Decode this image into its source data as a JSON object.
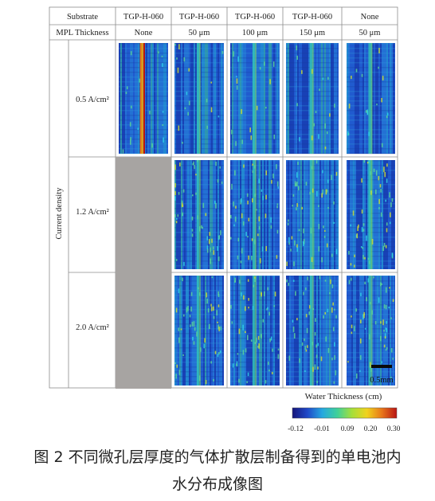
{
  "table": {
    "header_row1": [
      "Substrate",
      "TGP-H-060",
      "TGP-H-060",
      "TGP-H-060",
      "TGP-H-060",
      "None"
    ],
    "header_row2": [
      "MPL Thickness",
      "None",
      "50 μm",
      "100 μm",
      "150 μm",
      "50 μm"
    ],
    "row_axis_label": "Current density",
    "rows": [
      "0.5 A/cm²",
      "1.2 A/cm²",
      "2.0 A/cm²"
    ],
    "missing_cells": [
      [
        1,
        0
      ],
      [
        2,
        0
      ]
    ]
  },
  "scale_bar_label": "0.5mm",
  "colorbar": {
    "title": "Water Thickness (cm)",
    "ticks": [
      "-0.12",
      "-0.01",
      "0.09",
      "0.20",
      "0.30"
    ],
    "colors": [
      "#16167a",
      "#1f48c8",
      "#25a8e0",
      "#3fd09a",
      "#a6df3a",
      "#f0d21e",
      "#e8761a",
      "#b81414"
    ]
  },
  "caption": {
    "line1": "图 2 不同微孔层厚度的气体扩散层制备得到的单电池内",
    "line2": "水分布成像图"
  }
}
